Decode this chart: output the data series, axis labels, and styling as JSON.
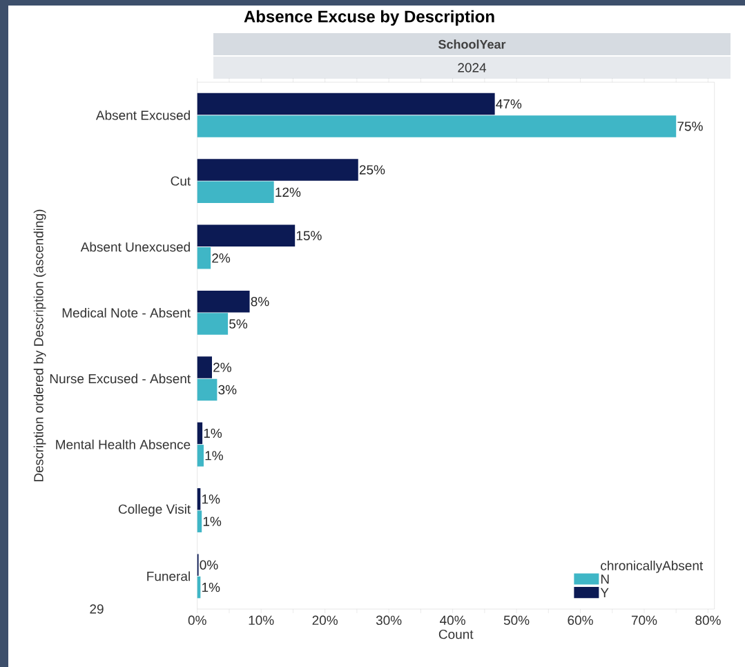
{
  "chart_data": {
    "type": "bar",
    "orientation": "horizontal",
    "title": "Absence Excuse by Description",
    "subtitle": "SchoolYear",
    "xlabel": "Count",
    "ylabel": "Description ordered by Description (ascending)",
    "legend_title": "chronicallyAbsent",
    "legend": "bottom right",
    "annotations": [
      "2024",
      "29"
    ],
    "categories": [
      "Absent Excused",
      "Cut",
      "Absent Unexcused",
      "Medical Note - Absent",
      "Nurse Excused - Absent",
      "Mental Health Absence",
      "College Visit",
      "Funeral"
    ],
    "series": [
      {
        "name": "N",
        "color": "#3fb6c6",
        "values": [
          75.0,
          12.0,
          2.1,
          4.8,
          3.1,
          1.0,
          0.7,
          0.5
        ],
        "value_labels": [
          "75%",
          "12%",
          "2%",
          "5%",
          "3%",
          "1%",
          "1%",
          "1%"
        ]
      },
      {
        "name": "Y",
        "color": "#0c1a54",
        "values": [
          46.6,
          25.2,
          15.3,
          8.2,
          2.3,
          0.8,
          0.5,
          0.2
        ],
        "value_labels": [
          "47%",
          "25%",
          "15%",
          "8%",
          "2%",
          "1%",
          "1%",
          "0%"
        ]
      }
    ],
    "xlim": [
      0,
      81
    ],
    "xticks": [
      {
        "value": 0,
        "label": "0%"
      },
      {
        "value": 5,
        "label": null
      },
      {
        "value": 10,
        "label": "10%"
      },
      {
        "value": 15,
        "label": null
      },
      {
        "value": 20,
        "label": "20%"
      },
      {
        "value": 25,
        "label": null
      },
      {
        "value": 30,
        "label": "30%"
      },
      {
        "value": 35,
        "label": null
      },
      {
        "value": 40,
        "label": "40%"
      },
      {
        "value": 45,
        "label": null
      },
      {
        "value": 50,
        "label": "50%"
      },
      {
        "value": 55,
        "label": null
      },
      {
        "value": 60,
        "label": "60%"
      },
      {
        "value": 65,
        "label": null
      },
      {
        "value": 70,
        "label": "70%"
      },
      {
        "value": 75,
        "label": null
      },
      {
        "value": 80,
        "label": "80%"
      }
    ]
  }
}
